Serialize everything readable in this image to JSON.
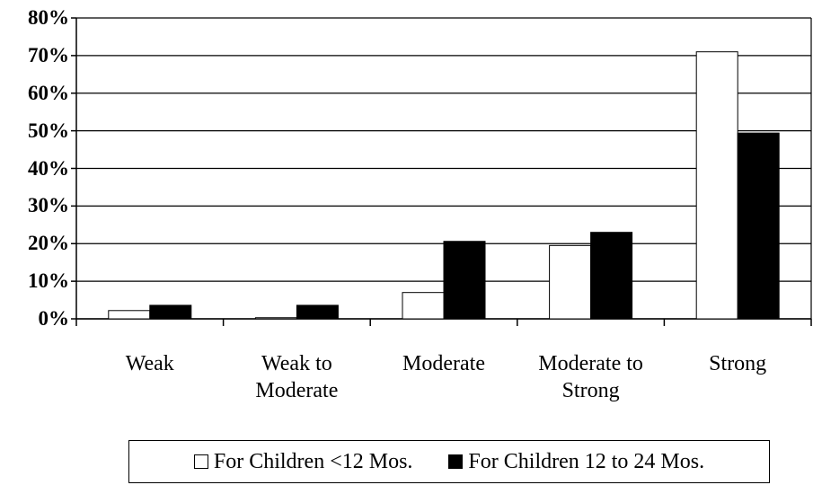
{
  "chart_data": {
    "type": "bar",
    "categories": [
      "Weak",
      "Weak to Moderate",
      "Moderate",
      "Moderate to Strong",
      "Strong"
    ],
    "series": [
      {
        "name": "For Children <12 Mos.",
        "color": "#ffffff",
        "values": [
          2.2,
          0.3,
          7,
          19.5,
          71
        ]
      },
      {
        "name": "For Children 12 to 24 Mos.",
        "color": "#000000",
        "values": [
          3.6,
          3.6,
          20.6,
          23,
          49.4
        ]
      }
    ],
    "ylim": [
      0,
      80
    ],
    "yticks": [
      {
        "value": 0,
        "label": "0%"
      },
      {
        "value": 10,
        "label": "10%"
      },
      {
        "value": 20,
        "label": "20%"
      },
      {
        "value": 30,
        "label": "30%"
      },
      {
        "value": 40,
        "label": "40%"
      },
      {
        "value": 50,
        "label": "50%"
      },
      {
        "value": 60,
        "label": "60%"
      },
      {
        "value": 70,
        "label": "70%"
      },
      {
        "value": 80,
        "label": "80%"
      }
    ],
    "grid": true
  }
}
